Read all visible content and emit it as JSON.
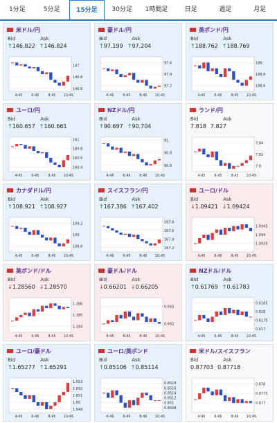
{
  "tabs": {
    "labels": [
      "1分足",
      "5分足",
      "15分足",
      "30分足",
      "1時間足",
      "日足",
      "週足",
      "月足"
    ],
    "active": 2
  },
  "labels": {
    "bid": "Bid",
    "ask": "Ask"
  },
  "chart_xticks": [
    "4:45",
    "6:45",
    "8:45",
    "10:45"
  ],
  "panels": [
    {
      "name": "米ドル/円",
      "arrow": "↑",
      "bid": "146.822",
      "ask": "146.824",
      "ylim": [
        146.55,
        147.15
      ],
      "yticks": [
        146.6,
        146.8,
        147
      ],
      "closes": [
        147.05,
        147.0,
        147.02,
        146.98,
        146.95,
        146.97,
        146.9,
        146.85,
        146.88,
        146.75,
        146.7,
        146.65,
        146.72,
        146.82
      ]
    },
    {
      "name": "豪ドル/円",
      "arrow": "↑",
      "bid": "97.199",
      "ask": "97.204",
      "ylim": [
        97.1,
        97.7
      ],
      "yticks": [
        97.2,
        97.4,
        97.6
      ],
      "closes": [
        97.5,
        97.45,
        97.48,
        97.4,
        97.35,
        97.38,
        97.42,
        97.3,
        97.25,
        97.3,
        97.2,
        97.15,
        97.18,
        97.2
      ]
    },
    {
      "name": "英ポンド/円",
      "arrow": "↑",
      "bid": "188.762",
      "ask": "188.769",
      "ylim": [
        188.5,
        189.1
      ],
      "yticks": [
        188.6,
        188.8,
        189
      ],
      "closes": [
        188.95,
        188.9,
        189.0,
        188.85,
        188.9,
        188.8,
        188.75,
        188.9,
        188.85,
        188.7,
        188.65,
        188.6,
        188.7,
        188.76
      ]
    },
    {
      "name": "ユーロ/円",
      "arrow": "↑",
      "bid": "160.657",
      "ask": "160.661",
      "ylim": [
        160.3,
        161.05
      ],
      "yticks": [
        160.4,
        160.6,
        160.8,
        161
      ],
      "closes": [
        160.85,
        160.9,
        160.88,
        160.8,
        160.85,
        160.75,
        160.7,
        160.72,
        160.6,
        160.5,
        160.45,
        160.4,
        160.55,
        160.66
      ]
    },
    {
      "name": "NZドル/円",
      "arrow": "↑",
      "bid": "90.697",
      "ask": "90.704",
      "ylim": [
        90.5,
        91.05
      ],
      "yticks": [
        90.6,
        90.8,
        91
      ],
      "closes": [
        90.95,
        90.9,
        90.85,
        90.88,
        90.8,
        90.82,
        90.75,
        90.78,
        90.7,
        90.65,
        90.6,
        90.62,
        90.68,
        90.7
      ]
    },
    {
      "name": "ランド/円",
      "bid": "7.818",
      "ask": "7.827",
      "ylim": [
        7.79,
        7.85
      ],
      "yticks": [
        7.8,
        7.82,
        7.84
      ],
      "closes": [
        7.825,
        7.83,
        7.82,
        7.815,
        7.825,
        7.81,
        7.8,
        7.805,
        7.795,
        7.8,
        7.8,
        7.805,
        7.81,
        7.818
      ]
    },
    {
      "name": "カナダドル/円",
      "arrow": "↑",
      "bid": "108.921",
      "ask": "108.927",
      "ylim": [
        108.7,
        109.3
      ],
      "yticks": [
        108.8,
        109,
        109.2
      ],
      "closes": [
        109.15,
        109.1,
        109.12,
        109.05,
        109.0,
        109.08,
        109.0,
        108.95,
        108.9,
        108.95,
        108.85,
        108.8,
        108.85,
        108.92
      ]
    },
    {
      "name": "スイスフラン/円",
      "arrow": "↑",
      "bid": "167.386",
      "ask": "167.402",
      "ylim": [
        167.1,
        167.9
      ],
      "yticks": [
        167.2,
        167.4,
        167.6,
        167.8
      ],
      "closes": [
        167.7,
        167.65,
        167.6,
        167.55,
        167.5,
        167.52,
        167.45,
        167.5,
        167.4,
        167.35,
        167.3,
        167.25,
        167.3,
        167.39
      ]
    },
    {
      "name": "ユーロ/ドル",
      "arrow": "↓",
      "bid": "1.09421",
      "ask": "1.09424",
      "ylim": [
        1.093,
        1.095
      ],
      "yticks": [
        1.0935,
        1.094,
        1.0945
      ],
      "closes": [
        1.0935,
        1.0938,
        1.094,
        1.0937,
        1.0941,
        1.0943,
        1.094,
        1.0944,
        1.0942,
        1.0945,
        1.0943,
        1.0946,
        1.0944,
        1.0942
      ]
    },
    {
      "name": "英ポンド/ドル",
      "arrow": "↓",
      "bid": "1.28560",
      "ask": "1.28570",
      "ylim": [
        1.2835,
        1.2865
      ],
      "yticks": [
        1.284,
        1.285,
        1.286
      ],
      "closes": [
        1.2845,
        1.2848,
        1.285,
        1.2852,
        1.2849,
        1.2855,
        1.2853,
        1.2858,
        1.2856,
        1.286,
        1.2858,
        1.2855,
        1.2857,
        1.2856
      ]
    },
    {
      "name": "豪ドル/ドル",
      "arrow": "↓",
      "bid": "0.66201",
      "ask": "0.66205",
      "ylim": [
        0.6615,
        0.6635
      ],
      "yticks": [
        0.662,
        0.663
      ],
      "closes": [
        0.662,
        0.6622,
        0.6621,
        0.6625,
        0.6623,
        0.6627,
        0.6624,
        0.6622,
        0.6626,
        0.6624,
        0.6621,
        0.6623,
        0.6621,
        0.662
      ]
    },
    {
      "name": "NZドル/ドル",
      "arrow": "↑",
      "bid": "0.61769",
      "ask": "0.61783",
      "ylim": [
        0.6168,
        0.6188
      ],
      "yticks": [
        0.617,
        0.6175,
        0.618,
        0.6185
      ],
      "closes": [
        0.6175,
        0.6178,
        0.6176,
        0.6174,
        0.6177,
        0.618,
        0.6178,
        0.6182,
        0.6179,
        0.6181,
        0.6178,
        0.618,
        0.6177,
        0.6177
      ]
    },
    {
      "name": "ユーロ/豪ドル",
      "arrow": "↑",
      "bid": "1.65277",
      "ask": "1.65291",
      "ylim": [
        1.6485,
        1.6535
      ],
      "yticks": [
        1.649,
        1.65,
        1.651,
        1.652,
        1.653
      ],
      "closes": [
        1.652,
        1.6515,
        1.651,
        1.6505,
        1.651,
        1.65,
        1.6495,
        1.65,
        1.649,
        1.6495,
        1.65,
        1.651,
        1.6515,
        1.6528
      ]
    },
    {
      "name": "ユーロ/英ポンド",
      "arrow": "↑",
      "bid": "0.85106",
      "ask": "0.85114",
      "ylim": [
        0.8506,
        0.852
      ],
      "yticks": [
        0.8508,
        0.851,
        0.8512,
        0.8514,
        0.8516,
        0.8518
      ],
      "closes": [
        0.8514,
        0.8512,
        0.8515,
        0.8513,
        0.851,
        0.8508,
        0.8511,
        0.8509,
        0.8512,
        0.8514,
        0.8513,
        0.8511,
        0.8511,
        0.8511
      ]
    },
    {
      "name": "米ドル/スイスフラン",
      "bid": "0.87703",
      "ask": "0.87718",
      "ylim": [
        0.8765,
        0.8783
      ],
      "yticks": [
        0.877,
        0.8775,
        0.878
      ],
      "closes": [
        0.8772,
        0.8775,
        0.8778,
        0.8776,
        0.8774,
        0.8777,
        0.8774,
        0.8771,
        0.8773,
        0.877,
        0.8772,
        0.877,
        0.8771,
        0.877
      ]
    }
  ]
}
